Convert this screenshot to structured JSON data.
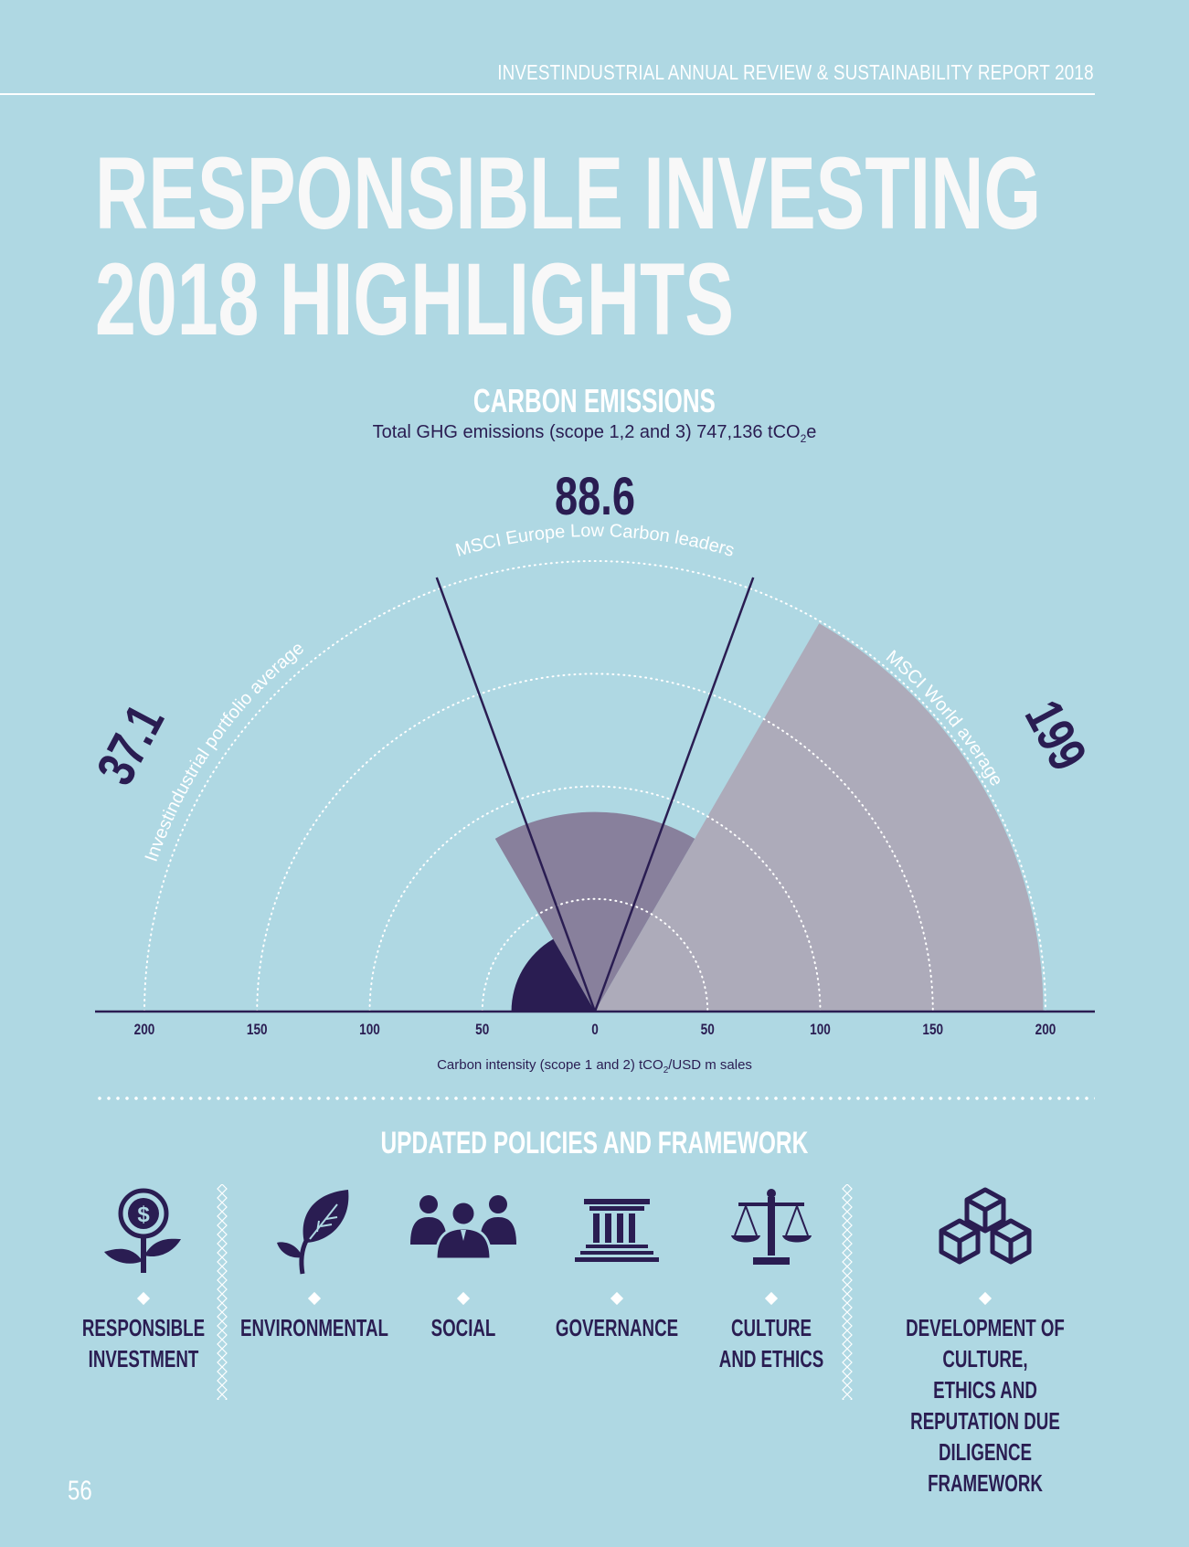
{
  "header": {
    "report_title": "INVESTINDUSTRIAL ANNUAL REVIEW & SUSTAINABILITY REPORT 2018"
  },
  "page_title": {
    "line1": "RESPONSIBLE INVESTING",
    "line2": "2018 HIGHLIGHTS"
  },
  "carbon": {
    "heading": "CARBON EMISSIONS",
    "subtitle_pre": "Total GHG emissions (scope 1,2 and 3) 747,136 tCO",
    "subtitle_sub": "2",
    "subtitle_post": "e",
    "axis_caption_pre": "Carbon intensity (scope 1 and 2) tCO",
    "axis_caption_sub": "2",
    "axis_caption_post": "/USD m sales"
  },
  "chart_data": {
    "type": "radial_area",
    "xlabel": "Carbon intensity (scope 1 and 2) tCO2/USD m sales",
    "axis_ticks": [
      200,
      150,
      100,
      50,
      0,
      50,
      100,
      150,
      200
    ],
    "axis_range": [
      0,
      200
    ],
    "series": [
      {
        "name": "Investindustrial portfolio average",
        "value": 37.1,
        "label": "37.1",
        "color": "#2a1d52"
      },
      {
        "name": "MSCI Europe Low Carbon leaders",
        "value": 88.6,
        "label": "88.6",
        "color": "#88809c"
      },
      {
        "name": "MSCI World average",
        "value": 199,
        "label": "199",
        "color": "#adabba"
      }
    ],
    "dotted_reference_rings": [
      50,
      100,
      150,
      200
    ]
  },
  "policies": {
    "heading": "UPDATED POLICIES AND FRAMEWORK",
    "items": [
      {
        "label": "RESPONSIBLE\nINVESTMENT",
        "icon": "flower-dollar-icon"
      },
      {
        "label": "ENVIRONMENTAL",
        "icon": "leaf-icon"
      },
      {
        "label": "SOCIAL",
        "icon": "people-group-icon"
      },
      {
        "label": "GOVERNANCE",
        "icon": "institution-building-icon"
      },
      {
        "label": "CULTURE\nAND ETHICS",
        "icon": "scales-icon"
      },
      {
        "label": "DEVELOPMENT OF CULTURE,\nETHICS AND REPUTATION DUE\nDILIGENCE FRAMEWORK",
        "icon": "cubes-icon"
      }
    ]
  },
  "page_number": "56",
  "colors": {
    "background": "#afd8e3",
    "dark": "#2a1d52",
    "mid": "#88809c",
    "light": "#adabba",
    "white": "#ffffff"
  }
}
